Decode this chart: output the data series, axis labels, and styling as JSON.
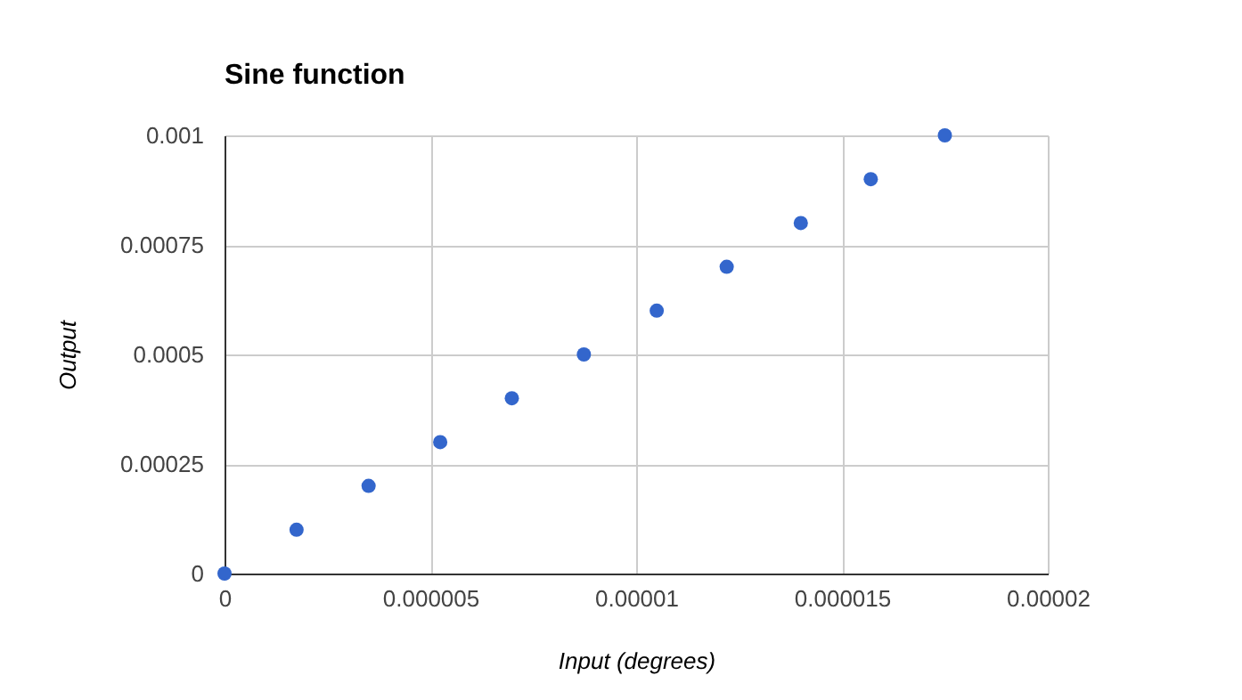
{
  "chart_data": {
    "type": "scatter",
    "title": "Sine function",
    "xlabel": "Input (degrees)",
    "ylabel": "Output",
    "x": [
      0,
      1.75e-06,
      3.5e-06,
      5.24e-06,
      6.98e-06,
      8.73e-06,
      1.05e-05,
      1.22e-05,
      1.4e-05,
      1.57e-05,
      1.75e-05
    ],
    "series": [
      {
        "color": "#3366cc",
        "values": [
          0,
          0.0001,
          0.0002,
          0.0003,
          0.0004,
          0.0005,
          0.0006,
          0.0007,
          0.0008,
          0.0009,
          0.001
        ]
      }
    ],
    "xlim": [
      0,
      2e-05
    ],
    "xticks": [
      0,
      {
        "value": 5e-06,
        "label": "0.000005"
      },
      {
        "value": 1e-05,
        "label": "0.00001"
      },
      {
        "value": 1.5e-05,
        "label": "0.000015"
      },
      {
        "value": 2e-05,
        "label": "0.00002"
      }
    ],
    "ylim": [
      0,
      0.001
    ],
    "yticks": [
      0,
      0.00025,
      0.0005,
      0.00075,
      0.001
    ],
    "grid": true,
    "marker": "circle",
    "legend": false
  }
}
